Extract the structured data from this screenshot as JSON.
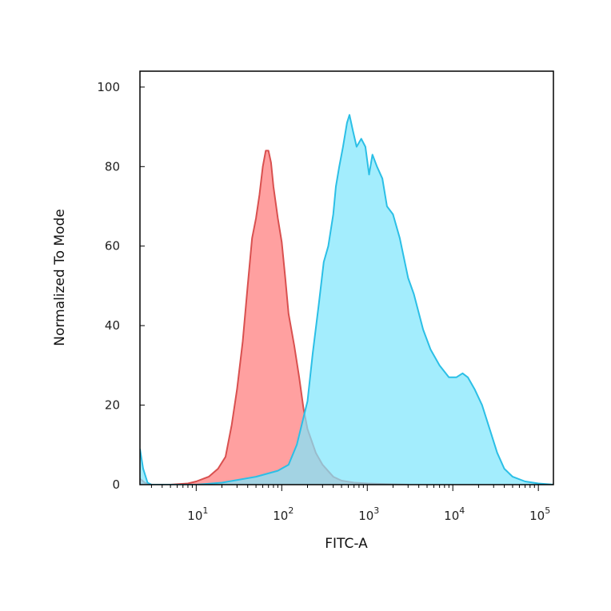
{
  "chart_data": {
    "type": "area",
    "xlabel": "FITC-A",
    "ylabel": "Normalized To Mode",
    "xscale": "log",
    "xlim": [
      2.2,
      150000
    ],
    "ylim": [
      0,
      104
    ],
    "grid": false,
    "legend": "none",
    "y_ticks": [
      {
        "value": 0,
        "label": "0"
      },
      {
        "value": 20,
        "label": "20"
      },
      {
        "value": 40,
        "label": "40"
      },
      {
        "value": 60,
        "label": "60"
      },
      {
        "value": 80,
        "label": "80"
      },
      {
        "value": 100,
        "label": "100"
      }
    ],
    "x_ticks": [
      {
        "value": 10,
        "base": "10",
        "exp": "1"
      },
      {
        "value": 100,
        "base": "10",
        "exp": "2"
      },
      {
        "value": 1000,
        "base": "10",
        "exp": "3"
      },
      {
        "value": 10000,
        "base": "10",
        "exp": "4"
      },
      {
        "value": 100000,
        "base": "10",
        "exp": "5"
      }
    ],
    "series": [
      {
        "fill": "#ff8f8f",
        "line": "#d9504f",
        "points": [
          [
            2.2,
            1.5
          ],
          [
            2.5,
            0.5
          ],
          [
            3,
            0
          ],
          [
            5,
            0
          ],
          [
            8,
            0.3
          ],
          [
            10,
            0.8
          ],
          [
            14,
            2
          ],
          [
            18,
            4
          ],
          [
            22,
            7
          ],
          [
            26,
            15
          ],
          [
            30,
            24
          ],
          [
            35,
            36
          ],
          [
            40,
            50
          ],
          [
            45,
            62
          ],
          [
            50,
            67
          ],
          [
            55,
            73
          ],
          [
            60,
            80
          ],
          [
            65,
            84
          ],
          [
            70,
            84
          ],
          [
            75,
            81
          ],
          [
            80,
            75
          ],
          [
            90,
            67
          ],
          [
            100,
            61
          ],
          [
            110,
            52
          ],
          [
            120,
            43
          ],
          [
            140,
            35
          ],
          [
            160,
            27
          ],
          [
            180,
            19
          ],
          [
            200,
            14
          ],
          [
            250,
            8
          ],
          [
            300,
            5
          ],
          [
            400,
            2
          ],
          [
            500,
            1
          ],
          [
            700,
            0.5
          ],
          [
            1000,
            0.3
          ],
          [
            2000,
            0.1
          ],
          [
            3000,
            0
          ]
        ]
      },
      {
        "fill": "#7fe6fc",
        "line": "#2bbfe6",
        "points": [
          [
            2.2,
            9
          ],
          [
            2.4,
            4
          ],
          [
            2.7,
            0.5
          ],
          [
            3,
            0
          ],
          [
            10,
            0
          ],
          [
            20,
            0.5
          ],
          [
            50,
            2
          ],
          [
            90,
            3.5
          ],
          [
            120,
            5
          ],
          [
            150,
            10
          ],
          [
            180,
            17
          ],
          [
            200,
            21
          ],
          [
            230,
            33
          ],
          [
            270,
            45
          ],
          [
            310,
            56
          ],
          [
            350,
            60
          ],
          [
            400,
            68
          ],
          [
            430,
            75
          ],
          [
            470,
            80
          ],
          [
            520,
            85
          ],
          [
            580,
            91
          ],
          [
            620,
            93
          ],
          [
            680,
            89
          ],
          [
            750,
            85
          ],
          [
            850,
            87
          ],
          [
            950,
            85
          ],
          [
            1050,
            78
          ],
          [
            1150,
            83
          ],
          [
            1300,
            80
          ],
          [
            1500,
            77
          ],
          [
            1700,
            70
          ],
          [
            2000,
            68
          ],
          [
            2400,
            62
          ],
          [
            3000,
            52
          ],
          [
            3500,
            48
          ],
          [
            4500,
            39
          ],
          [
            5500,
            34
          ],
          [
            7000,
            30
          ],
          [
            9000,
            27
          ],
          [
            11000,
            27
          ],
          [
            13000,
            28
          ],
          [
            15000,
            27
          ],
          [
            18000,
            24
          ],
          [
            22000,
            20
          ],
          [
            27000,
            14
          ],
          [
            33000,
            8
          ],
          [
            40000,
            4
          ],
          [
            50000,
            2
          ],
          [
            70000,
            0.8
          ],
          [
            100000,
            0.3
          ],
          [
            150000,
            0
          ]
        ]
      }
    ]
  }
}
